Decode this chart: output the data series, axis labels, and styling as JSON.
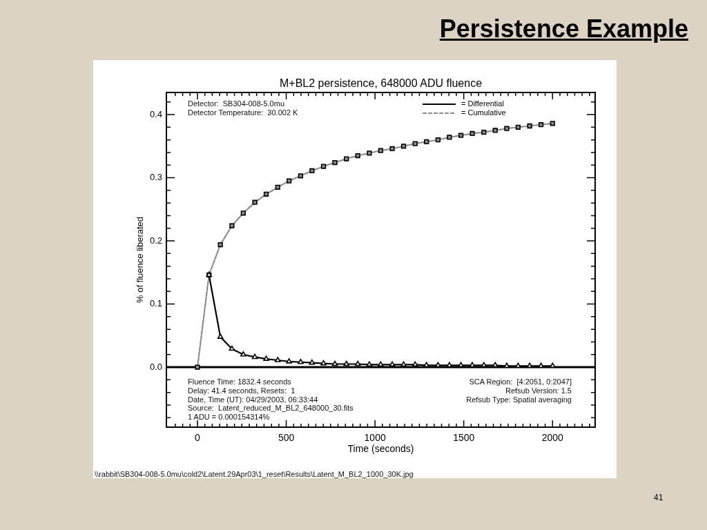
{
  "chart_data": {
    "type": "line",
    "title": "Persistence Example",
    "subtitle": "M+BL2 persistence, 648000 ADU fluence",
    "xlabel": "Time (seconds)",
    "ylabel": "% of fluence liberated",
    "x": [
      0,
      65,
      129,
      194,
      258,
      323,
      387,
      452,
      516,
      581,
      645,
      710,
      774,
      839,
      903,
      968,
      1032,
      1097,
      1161,
      1226,
      1290,
      1355,
      1419,
      1484,
      1548,
      1613,
      1677,
      1742,
      1806,
      1871,
      1935,
      2000
    ],
    "series": [
      {
        "name": "= Differential",
        "color": "#000000",
        "marker": "triangle",
        "line_style": "solid",
        "values": [
          null,
          0.146,
          0.048,
          0.029,
          0.02,
          0.016,
          0.013,
          0.011,
          0.009,
          0.008,
          0.007,
          0.006,
          0.005,
          0.005,
          0.005,
          0.004,
          0.004,
          0.004,
          0.004,
          0.004,
          0.003,
          0.003,
          0.003,
          0.003,
          0.003,
          0.003,
          0.003,
          0.002,
          0.002,
          0.002,
          0.002,
          0.002
        ]
      },
      {
        "name": "= Cumulative",
        "color": "#8c8c8c",
        "marker": "square",
        "line_style": "dashed",
        "values": [
          0,
          0.146,
          0.194,
          0.224,
          0.244,
          0.261,
          0.274,
          0.285,
          0.295,
          0.303,
          0.311,
          0.318,
          0.324,
          0.33,
          0.335,
          0.339,
          0.343,
          0.346,
          0.35,
          0.354,
          0.357,
          0.36,
          0.364,
          0.367,
          0.37,
          0.372,
          0.375,
          0.378,
          0.38,
          0.382,
          0.384,
          0.386
        ]
      }
    ],
    "xlim": [
      -175,
      2240
    ],
    "ylim": [
      -0.095,
      0.435
    ],
    "xticks": [
      {
        "value": -125,
        "label": null
      },
      {
        "value": -83.33,
        "label": null
      },
      {
        "value": -41.67,
        "label": null
      },
      0,
      {
        "value": 41.67,
        "label": null
      },
      {
        "value": 83.33,
        "label": null
      },
      {
        "value": 125,
        "label": null
      },
      {
        "value": 166.67,
        "label": null
      },
      {
        "value": 208.33,
        "label": null
      },
      {
        "value": 250,
        "label": null
      },
      {
        "value": 291.67,
        "label": null
      },
      {
        "value": 333.33,
        "label": null
      },
      {
        "value": 375,
        "label": null
      },
      {
        "value": 416.67,
        "label": null
      },
      {
        "value": 458.33,
        "label": null
      },
      500,
      {
        "value": 541.67,
        "label": null
      },
      {
        "value": 583.33,
        "label": null
      },
      {
        "value": 625,
        "label": null
      },
      {
        "value": 666.67,
        "label": null
      },
      {
        "value": 708.33,
        "label": null
      },
      {
        "value": 750,
        "label": null
      },
      {
        "value": 791.67,
        "label": null
      },
      {
        "value": 833.33,
        "label": null
      },
      {
        "value": 875,
        "label": null
      },
      {
        "value": 916.67,
        "label": null
      },
      {
        "value": 958.33,
        "label": null
      },
      1000,
      {
        "value": 1041.67,
        "label": null
      },
      {
        "value": 1083.33,
        "label": null
      },
      {
        "value": 1125,
        "label": null
      },
      {
        "value": 1166.67,
        "label": null
      },
      {
        "value": 1208.33,
        "label": null
      },
      {
        "value": 1250,
        "label": null
      },
      {
        "value": 1291.67,
        "label": null
      },
      {
        "value": 1333.33,
        "label": null
      },
      {
        "value": 1375,
        "label": null
      },
      {
        "value": 1416.67,
        "label": null
      },
      {
        "value": 1458.33,
        "label": null
      },
      1500,
      {
        "value": 1541.67,
        "label": null
      },
      {
        "value": 1583.33,
        "label": null
      },
      {
        "value": 1625,
        "label": null
      },
      {
        "value": 1666.67,
        "label": null
      },
      {
        "value": 1708.33,
        "label": null
      },
      {
        "value": 1750,
        "label": null
      },
      {
        "value": 1791.67,
        "label": null
      },
      {
        "value": 1833.33,
        "label": null
      },
      {
        "value": 1875,
        "label": null
      },
      {
        "value": 1916.67,
        "label": null
      },
      {
        "value": 1958.33,
        "label": null
      },
      2000,
      {
        "value": 2041.67,
        "label": null
      },
      {
        "value": 2083.33,
        "label": null
      },
      {
        "value": 2125,
        "label": null
      },
      {
        "value": 2166.67,
        "label": null
      },
      {
        "value": 2208.33,
        "label": null
      }
    ],
    "yticks": [
      {
        "value": -0.08,
        "label": null
      },
      {
        "value": -0.06,
        "label": null
      },
      {
        "value": -0.04,
        "label": null
      },
      {
        "value": -0.02,
        "label": null
      },
      {
        "value": 0,
        "label": "0.0"
      },
      {
        "value": 0.02,
        "label": null
      },
      {
        "value": 0.04,
        "label": null
      },
      {
        "value": 0.06,
        "label": null
      },
      {
        "value": 0.08,
        "label": null
      },
      0.1,
      {
        "value": 0.12,
        "label": null
      },
      {
        "value": 0.14,
        "label": null
      },
      {
        "value": 0.16,
        "label": null
      },
      {
        "value": 0.18,
        "label": null
      },
      0.2,
      {
        "value": 0.22,
        "label": null
      },
      {
        "value": 0.24,
        "label": null
      },
      {
        "value": 0.26,
        "label": null
      },
      {
        "value": 0.28,
        "label": null
      },
      0.3,
      {
        "value": 0.32,
        "label": null
      },
      {
        "value": 0.34,
        "label": null
      },
      {
        "value": 0.36,
        "label": null
      },
      {
        "value": 0.38,
        "label": null
      },
      0.4,
      {
        "value": 0.42,
        "label": null
      }
    ],
    "ref_lines": [
      {
        "axis": "y",
        "value": 0,
        "color": "#000000"
      }
    ],
    "legend": "top right",
    "annotations": [
      "Detector:  SB304-008-5.0mu",
      "Detector Temperature:  30.002 K",
      "Fluence Time: 1832.4 seconds",
      "Delay: 41.4 seconds, Resets:  1",
      "Date, Time (UT): 04/29/2003, 06:33:44",
      "Source:  Latent_reduced_M_BL2_648000_30.fits",
      "1 ADU = 0.000154314%",
      "SCA Region:  [4:2051, 0:2047]",
      "Refsub Version: 1.5",
      "Refsub Type: Spatial averaging",
      "\\\\rabbit\\SB304-008-5.0mu\\cold2\\Latent.29Apr03\\1_reset\\Results\\Latent_M_BL2_1000_30K.jpg",
      "41"
    ]
  }
}
